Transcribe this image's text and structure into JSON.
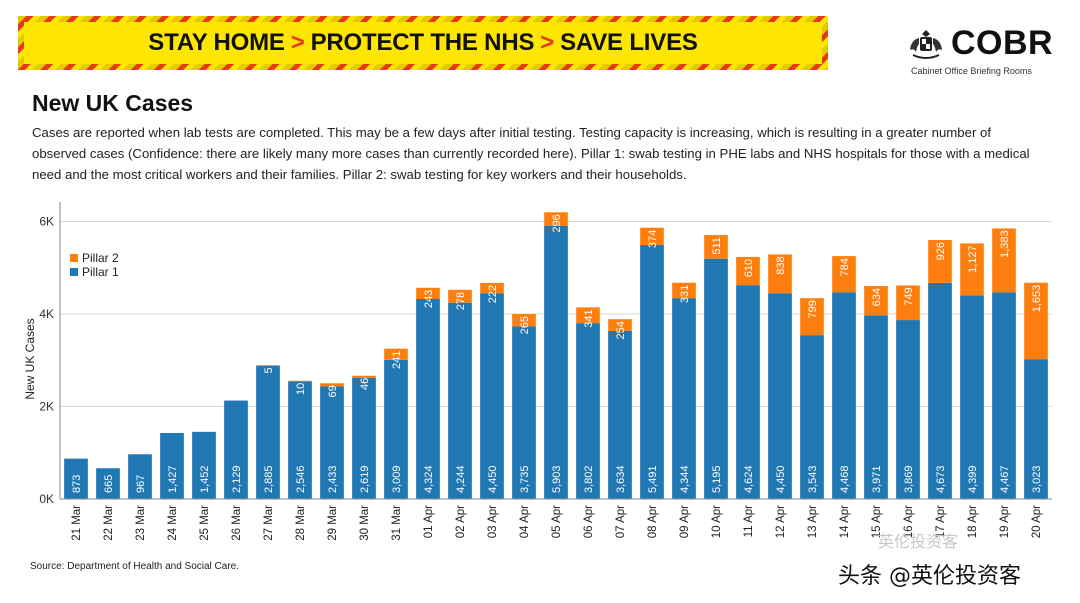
{
  "banner": {
    "parts": [
      "STAY HOME",
      "PROTECT THE NHS",
      "SAVE LIVES"
    ],
    "separator": ">"
  },
  "logo": {
    "title": "COBR",
    "subtitle": "Cabinet Office Briefing Rooms"
  },
  "page": {
    "title": "New UK Cases",
    "description": "Cases are reported when lab tests are completed. This may be a few days after initial testing. Testing capacity is increasing, which is resulting in a greater number of observed cases (Confidence: there are likely many more cases than currently recorded here). Pillar 1: swab testing in PHE labs and NHS hospitals for those with a medical need and the most critical workers and their families. Pillar 2: swab testing for key workers and their households.",
    "source": "Source: Department of Health and Social Care."
  },
  "watermark": {
    "text": "头条 @英伦投资客",
    "faint": "英伦投资客"
  },
  "colors": {
    "pillar1": "#1f77b4",
    "pillar2": "#ff7f0e",
    "banner_bg": "#ffe600",
    "chevron": "#e53a1a"
  },
  "chart_data": {
    "type": "bar",
    "stacked": true,
    "title": "",
    "xlabel": "",
    "ylabel": "New UK Cases",
    "ylim": [
      0,
      6500
    ],
    "yticks": [
      0,
      2000,
      4000,
      6000
    ],
    "ytick_labels": [
      "0K",
      "2K",
      "4K",
      "6K"
    ],
    "grid": true,
    "legend_position": "top-left",
    "categories": [
      "21 Mar",
      "22 Mar",
      "23 Mar",
      "24 Mar",
      "25 Mar",
      "26 Mar",
      "27 Mar",
      "28 Mar",
      "29 Mar",
      "30 Mar",
      "31 Mar",
      "01 Apr",
      "02 Apr",
      "03 Apr",
      "04 Apr",
      "05 Apr",
      "06 Apr",
      "07 Apr",
      "08 Apr",
      "09 Apr",
      "10 Apr",
      "11 Apr",
      "12 Apr",
      "13 Apr",
      "14 Apr",
      "15 Apr",
      "16 Apr",
      "17 Apr",
      "18 Apr",
      "19 Apr",
      "20 Apr"
    ],
    "series": [
      {
        "name": "Pillar 1",
        "values": [
          873,
          665,
          967,
          1427,
          1452,
          2129,
          2885,
          2546,
          2433,
          2619,
          3009,
          4324,
          4244,
          4450,
          3735,
          5903,
          3802,
          3634,
          5491,
          4344,
          5195,
          4624,
          4450,
          3543,
          4468,
          3971,
          3869,
          4673,
          4399,
          4467,
          3023
        ],
        "labels": [
          "873",
          "665",
          "967",
          "1,427",
          "1,452",
          "2,129",
          "2,885",
          "2,546",
          "2,433",
          "2,619",
          "3,009",
          "4,324",
          "4,244",
          "4,450",
          "3,735",
          "5,903",
          "3,802",
          "3,634",
          "5,491",
          "4,344",
          "5,195",
          "4,624",
          "4,450",
          "3,543",
          "4,468",
          "3,971",
          "3,869",
          "4,673",
          "4,399",
          "4,467",
          "3,023"
        ]
      },
      {
        "name": "Pillar 2",
        "values": [
          0,
          0,
          0,
          0,
          0,
          0,
          5,
          10,
          69,
          46,
          241,
          243,
          278,
          222,
          265,
          296,
          341,
          254,
          374,
          331,
          511,
          610,
          838,
          799,
          784,
          634,
          749,
          926,
          1127,
          1383,
          1653
        ],
        "labels": [
          "",
          "",
          "",
          "",
          "",
          "",
          "5",
          "10",
          "69",
          "46",
          "241",
          "243",
          "278",
          "222",
          "265",
          "296",
          "341",
          "254",
          "374",
          "331",
          "511",
          "610",
          "838",
          "799",
          "784",
          "634",
          "749",
          "926",
          "1,127",
          "1,383",
          "1,653"
        ]
      }
    ]
  }
}
